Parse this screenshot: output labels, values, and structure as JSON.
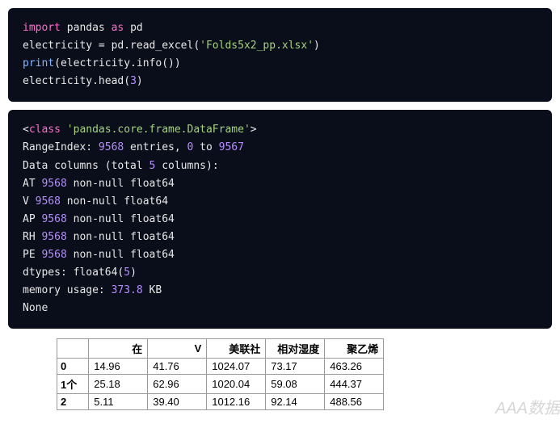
{
  "code1": {
    "kw_import": "import",
    "pandas": "pandas",
    "kw_as": "as",
    "pd": "pd",
    "electricity": "electricity",
    "eq": " = ",
    "pd_read": "pd.read_excel",
    "lp": "(",
    "file": "'Folds5x2_pp.xlsx'",
    "rp": ")",
    "print": "print",
    "info_call": "(electricity.info())",
    "head_left": "electricity.head(",
    "head_n": "3",
    "head_right": ")"
  },
  "output": {
    "lt": "<",
    "kw_class": "class",
    "frame": "'pandas.core.frame.DataFrame'",
    "gt": ">",
    "range1": "RangeIndex: ",
    "n_entries": "9568",
    "range2": " entries, ",
    "zero": "0",
    "range3": " to ",
    "max": "9567",
    "cols1": "Data columns (total ",
    "ncols": "5",
    "cols2": " columns):",
    "c_AT": "AT ",
    "c_V": "V ",
    "c_AP": "AP ",
    "c_RH": "RH ",
    "c_PE": "PE ",
    "nn": " non-null float64",
    "dtypes1": "dtypes: float64(",
    "dtypes_n": "5",
    "dtypes2": ")",
    "mem1": "memory usage: ",
    "mem_n": "373.8",
    "mem2": " KB",
    "none": "None"
  },
  "table": {
    "headers": [
      "在",
      "V",
      "美联社",
      "相对湿度",
      "聚乙烯"
    ],
    "rows": [
      {
        "idx": "0",
        "vals": [
          "14.96",
          "41.76",
          "1024.07",
          "73.17",
          "463.26"
        ]
      },
      {
        "idx": "1个",
        "vals": [
          "25.18",
          "62.96",
          "1020.04",
          "59.08",
          "444.37"
        ]
      },
      {
        "idx": "2",
        "vals": [
          "5.11",
          "39.40",
          "1012.16",
          "92.14",
          "488.56"
        ]
      }
    ]
  },
  "watermark": "AAA数据"
}
